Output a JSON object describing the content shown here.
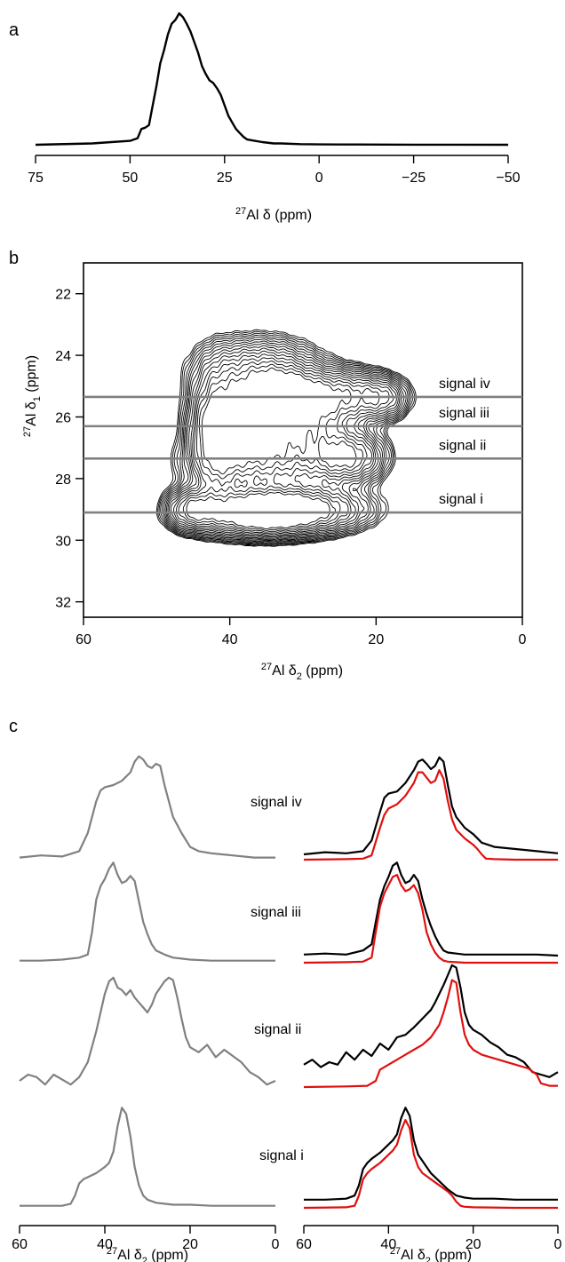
{
  "chart_data": [
    {
      "panel": "a",
      "type": "line",
      "xlabel": "27Al δ (ppm)",
      "xlim": [
        75,
        -50
      ],
      "xticks": [
        75,
        50,
        25,
        0,
        -25,
        -50
      ],
      "xtick_labels": [
        "75",
        "50",
        "25",
        "0",
        "−25",
        "−50"
      ],
      "series": [
        {
          "color": "#000000",
          "x": [
            75,
            60,
            55,
            50,
            48,
            47,
            46,
            45,
            44,
            43,
            42,
            41,
            40,
            39,
            38,
            37,
            36,
            35,
            34,
            33,
            32,
            31,
            30,
            29,
            28,
            27,
            26,
            25,
            24,
            23,
            22,
            21,
            20,
            19,
            18,
            17,
            15,
            12,
            10,
            5,
            0,
            -10,
            -25,
            -50
          ],
          "y": [
            0,
            0.01,
            0.02,
            0.03,
            0.05,
            0.12,
            0.13,
            0.15,
            0.3,
            0.45,
            0.62,
            0.72,
            0.84,
            0.92,
            0.95,
            1.0,
            0.97,
            0.92,
            0.86,
            0.78,
            0.7,
            0.6,
            0.54,
            0.49,
            0.47,
            0.43,
            0.38,
            0.3,
            0.22,
            0.17,
            0.12,
            0.09,
            0.06,
            0.04,
            0.035,
            0.03,
            0.02,
            0.01,
            0.01,
            0.005,
            0.003,
            0.002,
            0.001,
            0
          ]
        }
      ]
    },
    {
      "panel": "b",
      "type": "contour",
      "xlabel": "27Al δ2 (ppm)",
      "ylabel": "27Al δ1 (ppm)",
      "xlim": [
        60,
        0
      ],
      "ylim": [
        21,
        32.5
      ],
      "xticks": [
        60,
        40,
        20,
        0
      ],
      "yticks": [
        22,
        24,
        26,
        28,
        30,
        32
      ],
      "peaks": [
        {
          "x": 36,
          "y": 29.1,
          "amp": 1.0,
          "sx": 5,
          "sy": 0.45
        },
        {
          "x": 45,
          "y": 29.0,
          "amp": 0.55,
          "sx": 2.2,
          "sy": 0.4
        },
        {
          "x": 29,
          "y": 29.0,
          "amp": 0.55,
          "sx": 5,
          "sy": 0.45
        },
        {
          "x": 38,
          "y": 26.3,
          "amp": 0.85,
          "sx": 3.5,
          "sy": 0.7
        },
        {
          "x": 33,
          "y": 25.3,
          "amp": 0.7,
          "sx": 3.5,
          "sy": 0.5
        },
        {
          "x": 30,
          "y": 26.2,
          "amp": 0.55,
          "sx": 4,
          "sy": 0.8
        },
        {
          "x": 24,
          "y": 27.3,
          "amp": 0.65,
          "sx": 3,
          "sy": 0.5
        },
        {
          "x": 24,
          "y": 25.3,
          "amp": 0.5,
          "sx": 4,
          "sy": 0.5
        },
        {
          "x": 42,
          "y": 26.5,
          "amp": 0.6,
          "sx": 2,
          "sy": 1.2
        },
        {
          "x": 36,
          "y": 24.6,
          "amp": 0.45,
          "sx": 5,
          "sy": 0.7
        },
        {
          "x": 19,
          "y": 25.4,
          "amp": 0.3,
          "sx": 2,
          "sy": 0.4
        },
        {
          "x": 36,
          "y": 27.5,
          "amp": 0.4,
          "sx": 6,
          "sy": 0.6
        }
      ],
      "contour_levels": 16,
      "slices": [
        {
          "label": "signal iv",
          "y": 25.35
        },
        {
          "label": "signal iii",
          "y": 26.3
        },
        {
          "label": "signal ii",
          "y": 27.35
        },
        {
          "label": "signal i",
          "y": 29.1
        }
      ]
    },
    {
      "panel": "c",
      "type": "line",
      "xlabel": "27Al δ2 (ppm)",
      "xlim": [
        60,
        0
      ],
      "xticks": [
        60,
        40,
        20,
        0
      ],
      "series": [
        {
          "signal": "signal iv",
          "column": "left",
          "color": "#808080",
          "x": [
            60,
            55,
            50,
            46,
            44,
            42,
            41,
            40,
            38,
            36,
            34,
            33,
            32,
            31,
            30,
            29,
            28,
            27,
            26,
            25,
            24,
            22,
            20,
            18,
            15,
            10,
            5,
            0
          ],
          "y": [
            0.02,
            0.04,
            0.03,
            0.08,
            0.25,
            0.55,
            0.65,
            0.68,
            0.7,
            0.74,
            0.82,
            0.92,
            0.97,
            0.94,
            0.88,
            0.86,
            0.9,
            0.88,
            0.7,
            0.55,
            0.4,
            0.25,
            0.12,
            0.08,
            0.06,
            0.04,
            0.02,
            0.02
          ]
        },
        {
          "signal": "signal iv",
          "column": "right",
          "color": "#000000",
          "name": "",
          "x": [
            60,
            55,
            50,
            46,
            44,
            42,
            41,
            40,
            38,
            36,
            34,
            33,
            32,
            31,
            30,
            29,
            28,
            27,
            26,
            25,
            24,
            22,
            20,
            18,
            15,
            10,
            5,
            0
          ],
          "y": [
            0.05,
            0.07,
            0.06,
            0.08,
            0.18,
            0.45,
            0.58,
            0.62,
            0.64,
            0.72,
            0.84,
            0.92,
            0.94,
            0.9,
            0.85,
            0.88,
            0.96,
            0.92,
            0.7,
            0.5,
            0.4,
            0.3,
            0.24,
            0.16,
            0.12,
            0.1,
            0.08,
            0.06
          ]
        },
        {
          "signal": "signal iv",
          "column": "right",
          "color": "#e01010",
          "x": [
            60,
            50,
            46,
            44,
            42,
            41,
            40,
            38,
            36,
            34,
            33,
            32,
            31,
            30,
            29,
            28,
            27,
            26,
            25,
            24,
            22,
            20,
            19,
            18,
            17,
            15,
            10,
            5,
            0
          ],
          "y": [
            0,
            0.005,
            0.01,
            0.04,
            0.3,
            0.42,
            0.48,
            0.52,
            0.6,
            0.72,
            0.82,
            0.82,
            0.77,
            0.72,
            0.74,
            0.84,
            0.76,
            0.55,
            0.38,
            0.28,
            0.2,
            0.14,
            0.1,
            0.05,
            0.01,
            0.005,
            0,
            0,
            0
          ]
        },
        {
          "signal": "signal iii",
          "column": "left",
          "color": "#808080",
          "x": [
            60,
            55,
            50,
            46,
            44,
            43,
            42,
            41,
            40,
            39,
            38,
            37,
            36,
            35,
            34,
            33,
            32,
            31,
            30,
            29,
            28,
            26,
            24,
            22,
            20,
            15,
            10,
            5,
            0
          ],
          "y": [
            0.02,
            0.02,
            0.03,
            0.05,
            0.08,
            0.3,
            0.62,
            0.75,
            0.82,
            0.92,
            0.98,
            0.86,
            0.78,
            0.8,
            0.85,
            0.8,
            0.6,
            0.4,
            0.28,
            0.18,
            0.12,
            0.08,
            0.05,
            0.04,
            0.03,
            0.02,
            0.02,
            0.02,
            0.02
          ]
        },
        {
          "signal": "signal iii",
          "column": "right",
          "color": "#000000",
          "x": [
            60,
            55,
            50,
            46,
            44,
            43,
            42,
            41,
            40,
            39,
            38,
            37,
            36,
            35,
            34,
            33,
            32,
            31,
            30,
            29,
            28,
            27,
            26,
            24,
            22,
            20,
            15,
            10,
            5,
            0
          ],
          "y": [
            0.08,
            0.09,
            0.08,
            0.12,
            0.18,
            0.4,
            0.62,
            0.75,
            0.84,
            0.95,
            0.98,
            0.86,
            0.78,
            0.8,
            0.86,
            0.8,
            0.62,
            0.48,
            0.36,
            0.26,
            0.18,
            0.12,
            0.1,
            0.09,
            0.08,
            0.08,
            0.08,
            0.08,
            0.08,
            0.07
          ]
        },
        {
          "signal": "signal iii",
          "column": "right",
          "color": "#e01010",
          "x": [
            60,
            50,
            46,
            44,
            43,
            42,
            41,
            40,
            39,
            38,
            37,
            36,
            35,
            34,
            33,
            32,
            31,
            30,
            29,
            28,
            27,
            26,
            24,
            22,
            20,
            0
          ],
          "y": [
            0,
            0.005,
            0.01,
            0.05,
            0.3,
            0.55,
            0.68,
            0.76,
            0.84,
            0.86,
            0.76,
            0.7,
            0.72,
            0.76,
            0.68,
            0.52,
            0.3,
            0.18,
            0.1,
            0.05,
            0.02,
            0.01,
            0.005,
            0,
            0,
            0
          ]
        },
        {
          "signal": "signal ii",
          "column": "left",
          "color": "#808080",
          "x": [
            60,
            58,
            56,
            54,
            52,
            50,
            48,
            46,
            44,
            42,
            41,
            40,
            39,
            38,
            37,
            36,
            35,
            34,
            33,
            32,
            31,
            30,
            29,
            28,
            27,
            26,
            25,
            24,
            23,
            22,
            21,
            20,
            18,
            16,
            14,
            12,
            10,
            8,
            6,
            4,
            2,
            0
          ],
          "y": [
            0.05,
            0.1,
            0.08,
            0.02,
            0.1,
            0.06,
            0.02,
            0.08,
            0.2,
            0.45,
            0.6,
            0.75,
            0.85,
            0.88,
            0.8,
            0.78,
            0.74,
            0.78,
            0.72,
            0.68,
            0.64,
            0.6,
            0.66,
            0.75,
            0.8,
            0.85,
            0.88,
            0.86,
            0.72,
            0.55,
            0.4,
            0.32,
            0.28,
            0.34,
            0.24,
            0.3,
            0.25,
            0.2,
            0.12,
            0.08,
            0.02,
            0.05
          ]
        },
        {
          "signal": "signal ii",
          "column": "right",
          "color": "#000000",
          "x": [
            60,
            58,
            56,
            54,
            52,
            50,
            48,
            46,
            44,
            42,
            40,
            38,
            36,
            34,
            32,
            30,
            29,
            28,
            27,
            26,
            25,
            24,
            23,
            22,
            21,
            20,
            18,
            16,
            14,
            12,
            10,
            8,
            6,
            4,
            2,
            0
          ],
          "y": [
            0.18,
            0.22,
            0.16,
            0.2,
            0.18,
            0.28,
            0.22,
            0.3,
            0.25,
            0.35,
            0.3,
            0.4,
            0.42,
            0.48,
            0.55,
            0.62,
            0.68,
            0.75,
            0.82,
            0.9,
            0.98,
            0.96,
            0.8,
            0.6,
            0.5,
            0.46,
            0.42,
            0.36,
            0.32,
            0.26,
            0.24,
            0.2,
            0.12,
            0.1,
            0.08,
            0.12
          ]
        },
        {
          "signal": "signal ii",
          "column": "right",
          "color": "#e01010",
          "x": [
            60,
            50,
            45,
            43,
            42,
            40,
            38,
            36,
            34,
            32,
            30,
            28,
            27,
            26,
            25,
            24,
            23,
            22,
            21,
            20,
            18,
            14,
            10,
            7,
            5,
            4,
            2,
            0
          ],
          "y": [
            0,
            0.005,
            0.01,
            0.05,
            0.14,
            0.18,
            0.22,
            0.26,
            0.3,
            0.34,
            0.4,
            0.5,
            0.6,
            0.72,
            0.86,
            0.84,
            0.6,
            0.42,
            0.34,
            0.3,
            0.26,
            0.22,
            0.18,
            0.15,
            0.1,
            0.03,
            0.01,
            0.01
          ]
        },
        {
          "signal": "signal i",
          "column": "left",
          "color": "#808080",
          "x": [
            60,
            55,
            50,
            48,
            47,
            46,
            45,
            44,
            42,
            40,
            39,
            38,
            37,
            36,
            35,
            34,
            33,
            32,
            31,
            30,
            28,
            26,
            24,
            22,
            20,
            15,
            10,
            5,
            0
          ],
          "y": [
            0.02,
            0.02,
            0.02,
            0.04,
            0.12,
            0.24,
            0.28,
            0.3,
            0.34,
            0.4,
            0.44,
            0.55,
            0.8,
            0.98,
            0.92,
            0.7,
            0.4,
            0.22,
            0.12,
            0.08,
            0.05,
            0.04,
            0.03,
            0.03,
            0.03,
            0.02,
            0.02,
            0.02,
            0.02
          ]
        },
        {
          "signal": "signal i",
          "column": "right",
          "color": "#000000",
          "x": [
            60,
            55,
            50,
            48,
            47,
            46,
            45,
            44,
            42,
            40,
            39,
            38,
            37,
            36,
            35,
            34,
            33,
            32,
            31,
            30,
            28,
            26,
            24,
            22,
            20,
            15,
            10,
            5,
            0
          ],
          "y": [
            0.08,
            0.08,
            0.09,
            0.12,
            0.22,
            0.38,
            0.44,
            0.48,
            0.54,
            0.62,
            0.66,
            0.72,
            0.88,
            0.98,
            0.9,
            0.66,
            0.52,
            0.46,
            0.4,
            0.34,
            0.26,
            0.18,
            0.12,
            0.1,
            0.09,
            0.09,
            0.08,
            0.08,
            0.08
          ]
        },
        {
          "signal": "signal i",
          "column": "right",
          "color": "#e01010",
          "x": [
            60,
            50,
            48,
            47,
            46,
            45,
            44,
            42,
            40,
            39,
            38,
            37,
            36,
            35,
            34,
            33,
            32,
            30,
            28,
            26,
            25,
            24,
            23,
            22,
            20,
            10,
            0
          ],
          "y": [
            0,
            0.005,
            0.02,
            0.12,
            0.28,
            0.34,
            0.38,
            0.44,
            0.52,
            0.56,
            0.62,
            0.76,
            0.86,
            0.78,
            0.52,
            0.4,
            0.34,
            0.28,
            0.22,
            0.16,
            0.12,
            0.06,
            0.02,
            0.01,
            0.005,
            0,
            0
          ]
        }
      ],
      "signals": [
        "signal iv",
        "signal iii",
        "signal ii",
        "signal i"
      ]
    }
  ],
  "labels": {
    "panel_a": "a",
    "panel_b": "b",
    "panel_c": "c",
    "al_a_xlabel_sup": "27",
    "al_a_xlabel_main": "Al δ (ppm)",
    "b_ylabel_sup": "27",
    "b_ylabel_main": "Al δ",
    "b_ylabel_sub": "1",
    "b_ylabel_unit": " (ppm)",
    "b_xlabel_sup": "27",
    "b_xlabel_main": "Al δ",
    "b_xlabel_sub": "2",
    "b_xlabel_unit": " (ppm)"
  },
  "colors": {
    "slice_line": "#808080",
    "contour": "#000000",
    "fit": "#e01010",
    "projection": "#808080"
  }
}
